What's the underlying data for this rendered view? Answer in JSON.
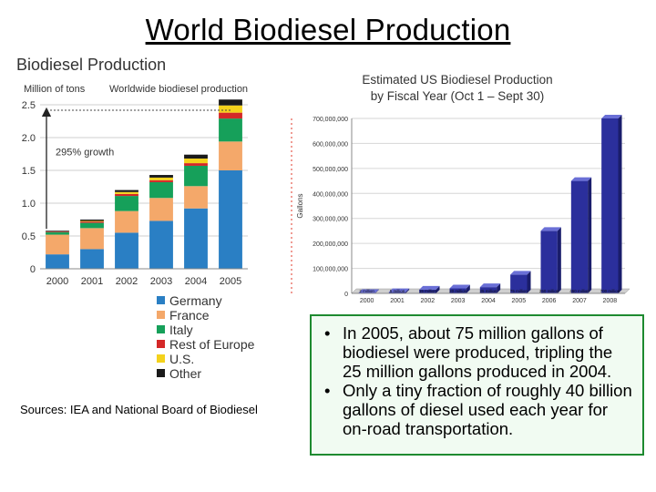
{
  "slide": {
    "title": "World Biodiesel Production",
    "sources": "Sources: IEA and National Board of Biodiesel",
    "bullets": [
      "In 2005, about 75 million gallons of biodiesel were produced, tripling the 25 million gallons produced in 2004.",
      "Only a tiny fraction of roughly 40 billion gallons of diesel used each year for on-road transportation."
    ]
  },
  "chart_data": [
    {
      "type": "bar",
      "stacked": true,
      "title": "Biodiesel Production",
      "subtitle": "Worldwide biodiesel production",
      "ylabel": "Million of tons",
      "categories": [
        "2000",
        "2001",
        "2002",
        "2003",
        "2004",
        "2005"
      ],
      "ylim": [
        0,
        2.5
      ],
      "yticks": [
        "0",
        "0.5",
        "1.0",
        "1.5",
        "2.0",
        "2.5"
      ],
      "series": [
        {
          "name": "Germany",
          "color": "#2a7fc4",
          "values": [
            0.22,
            0.3,
            0.55,
            0.73,
            0.92,
            1.5
          ]
        },
        {
          "name": "France",
          "color": "#f4a86a",
          "values": [
            0.3,
            0.32,
            0.33,
            0.35,
            0.34,
            0.44
          ]
        },
        {
          "name": "Italy",
          "color": "#16a05a",
          "values": [
            0.04,
            0.08,
            0.23,
            0.24,
            0.31,
            0.35
          ]
        },
        {
          "name": "Rest of Europe",
          "color": "#d42828",
          "values": [
            0.01,
            0.02,
            0.03,
            0.03,
            0.04,
            0.09
          ]
        },
        {
          "name": "U.S.",
          "color": "#f4d21c",
          "values": [
            0.0,
            0.01,
            0.03,
            0.04,
            0.07,
            0.11
          ]
        },
        {
          "name": "Other",
          "color": "#1a1a1a",
          "values": [
            0.01,
            0.02,
            0.03,
            0.04,
            0.06,
            0.09
          ]
        }
      ],
      "annotation": "295% growth",
      "grid": true,
      "legend": "bottom"
    },
    {
      "type": "bar",
      "title": "Estimated US Biodiesel Production",
      "subtitle": "by Fiscal Year (Oct 1 – Sept 30)",
      "ylabel": "Gallons",
      "categories": [
        "2000",
        "2001",
        "2002",
        "2003",
        "2004",
        "2005",
        "2006",
        "2007",
        "2008"
      ],
      "values": [
        2000000,
        5000000,
        15000000,
        20000000,
        25000000,
        75000000,
        250000000,
        450000000,
        700000000
      ],
      "data_labels": [
        "2 million",
        "5 million",
        "15 million",
        "20 million",
        "25 million",
        "75 million",
        "250 million",
        "450 million",
        "700 million"
      ],
      "ylim": [
        0,
        700000000
      ],
      "yticks": [
        "0",
        "100,000,000",
        "200,000,000",
        "300,000,000",
        "400,000,000",
        "500,000,000",
        "600,000,000",
        "700,000,000"
      ],
      "grid": true,
      "bar_color": "#2b2f9c"
    }
  ]
}
